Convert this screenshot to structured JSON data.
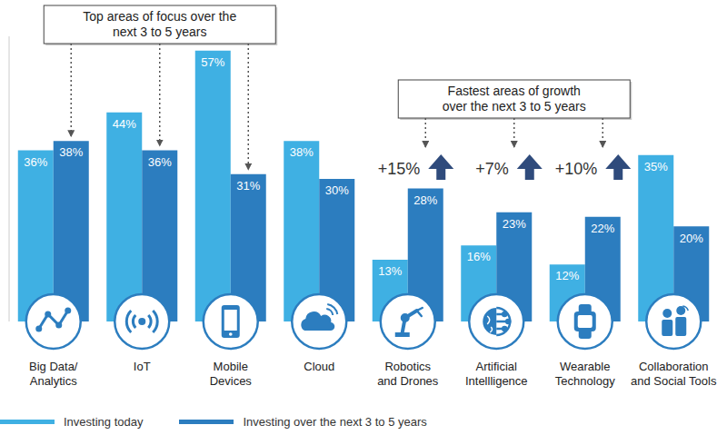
{
  "chart_data": {
    "type": "bar",
    "categories": [
      "Big Data/\nAnalytics",
      "IoT",
      "Mobile\nDevices",
      "Cloud",
      "Robotics\nand Drones",
      "Artificial\nIntellligence",
      "Wearable\nTechnology",
      "Collaboration\nand Social Tools"
    ],
    "series": [
      {
        "name": "Investing today",
        "color": "#3fb0e3",
        "values": [
          36,
          44,
          57,
          38,
          13,
          16,
          12,
          35
        ],
        "value_labels": [
          "36%",
          "44%",
          "57%",
          "38%",
          "13%",
          "16%",
          "12%",
          "35%"
        ]
      },
      {
        "name": "Investing over the next 3 to 5 years",
        "color": "#2c7dbf",
        "values": [
          38,
          36,
          31,
          30,
          28,
          23,
          22,
          20
        ],
        "value_labels": [
          "38%",
          "36%",
          "31%",
          "30%",
          "28%",
          "23%",
          "22%",
          "20%"
        ]
      }
    ],
    "ylim": [
      0,
      60
    ],
    "tick_labels": false,
    "data_labels": true,
    "legend": "bottom left",
    "annotations": [
      {
        "text": "Top areas of focus over the\nnext 3 to 5 years",
        "categories": [
          "Big Data/\nAnalytics",
          "IoT",
          "Mobile\nDevices"
        ],
        "series": "Investing over the next 3 to 5 years"
      },
      {
        "text": "Fastest areas of growth\nover the next 3 to 5 years",
        "categories": [
          "Robotics\nand Drones",
          "Artificial\nIntellligence",
          "Wearable\nTechnology"
        ],
        "series": "Investing over the next 3 to 5 years",
        "values": [
          15,
          7,
          10
        ],
        "value_labels": [
          "+15%",
          "+7%",
          "+10%"
        ]
      }
    ]
  }
}
